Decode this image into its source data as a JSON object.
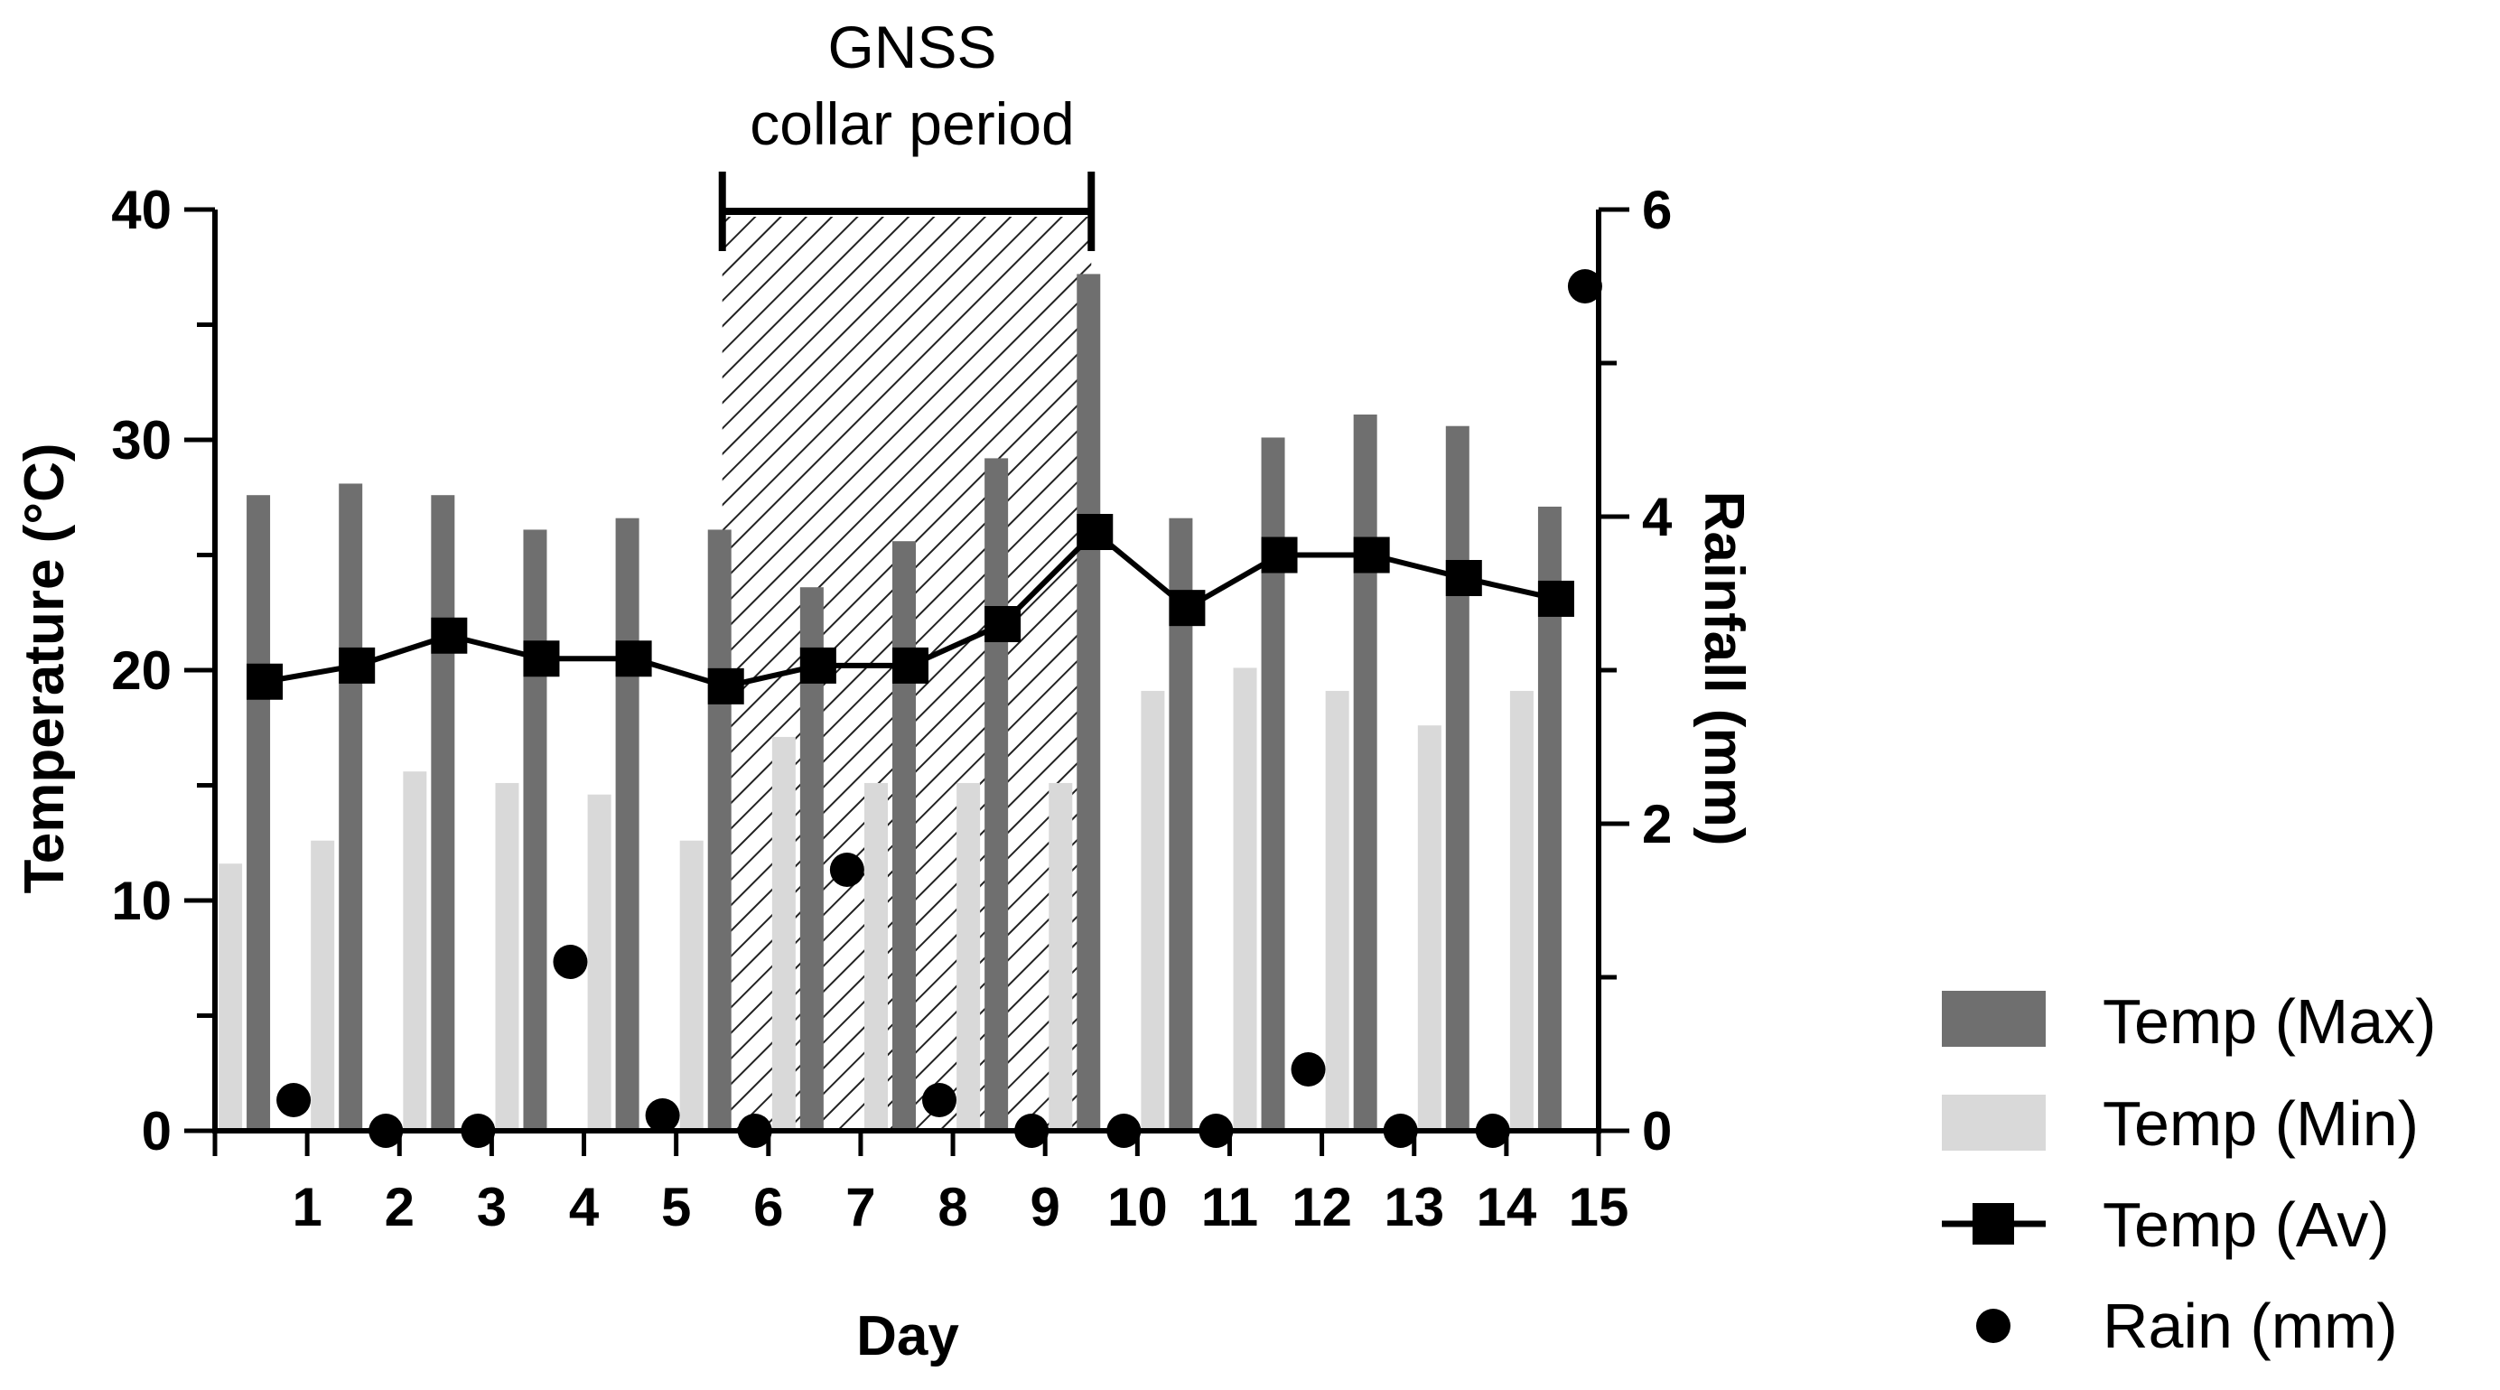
{
  "chart_data": {
    "type": "bar",
    "title": "",
    "xlabel": "Day",
    "ylabel": "Temperature (°C)",
    "y2label": "Rainfall (mm)",
    "ylim": [
      0,
      40
    ],
    "y2lim": [
      0,
      6
    ],
    "yticks": [
      0,
      10,
      20,
      30,
      40
    ],
    "y2ticks": [
      0,
      2,
      4,
      6
    ],
    "categories": [
      1,
      2,
      3,
      4,
      5,
      6,
      7,
      8,
      9,
      10,
      11,
      12,
      13,
      14,
      15
    ],
    "series": [
      {
        "name": "Temp (Max)",
        "type": "bar",
        "color": "#6f6f6f",
        "values": [
          27.6,
          28.1,
          27.6,
          26.1,
          26.6,
          26.1,
          23.6,
          25.6,
          29.2,
          37.2,
          26.6,
          30.1,
          31.1,
          30.6,
          27.1
        ]
      },
      {
        "name": "Temp (Min)",
        "type": "bar",
        "color": "#d9d9d9",
        "values": [
          11.6,
          12.6,
          15.6,
          15.1,
          14.6,
          12.6,
          17.1,
          15.1,
          15.1,
          15.1,
          19.1,
          20.1,
          19.1,
          17.6,
          19.1
        ]
      },
      {
        "name": "Temp (Av)",
        "type": "line",
        "marker": "square",
        "color": "#000000",
        "values": [
          19.5,
          20.2,
          21.5,
          20.5,
          20.5,
          19.3,
          20.2,
          20.2,
          22.0,
          26.0,
          22.7,
          25.0,
          25.0,
          24.0,
          23.1
        ]
      },
      {
        "name": "Rain (mm)",
        "type": "scatter",
        "marker": "circle",
        "axis": "right",
        "color": "#000000",
        "values": [
          0.2,
          0.0,
          0.0,
          1.1,
          0.1,
          0.0,
          1.7,
          0.2,
          0.0,
          0.0,
          0.0,
          0.4,
          0.0,
          0.0,
          5.5
        ]
      }
    ],
    "annotation": {
      "line1": "GNSS",
      "line2": "collar period",
      "from_day": 6,
      "to_day": 10
    },
    "legend": {
      "position": "bottom-right",
      "entries": [
        "Temp (Max)",
        "Temp (Min)",
        "Temp (Av)",
        "Rain (mm)"
      ]
    }
  }
}
